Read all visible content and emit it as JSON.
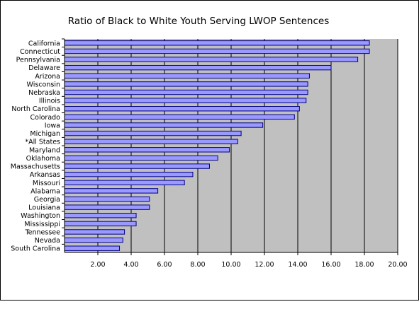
{
  "chart_data": {
    "type": "bar",
    "orientation": "horizontal",
    "title": "Ratio of Black to White Youth Serving LWOP Sentences",
    "xlabel": "",
    "ylabel": "",
    "xlim": [
      0,
      20
    ],
    "xticks": [
      "2.00",
      "4.00",
      "6.00",
      "8.00",
      "10.00",
      "12.00",
      "14.00",
      "16.00",
      "18.00",
      "20.00"
    ],
    "grid": true,
    "legend": "none",
    "colors": {
      "bar_fill": "#9999ff",
      "bar_edge": "#000080",
      "plot_bg": "#c0c0c0",
      "gridline": "#000000"
    },
    "categories": [
      "California",
      "Connecticut",
      "Pennsylvania",
      "Delaware",
      "Arizona",
      "Wisconsin",
      "Nebraska",
      "Illinois",
      "North Carolina",
      "Colorado",
      "Iowa",
      "Michigan",
      "*All States",
      "Maryland",
      "Oklahoma",
      "Massachusetts",
      "Arkansas",
      "Missouri",
      "Alabama",
      "Georgia",
      "Louisiana",
      "Washington",
      "Mississippi",
      "Tennessee",
      "Nevada",
      "South Carolina"
    ],
    "values": [
      18.3,
      18.3,
      17.6,
      16.0,
      14.7,
      14.6,
      14.6,
      14.5,
      14.1,
      13.8,
      11.9,
      10.6,
      10.4,
      9.9,
      9.2,
      8.7,
      7.7,
      7.2,
      5.6,
      5.1,
      5.1,
      4.3,
      4.3,
      3.6,
      3.5,
      3.3
    ]
  }
}
